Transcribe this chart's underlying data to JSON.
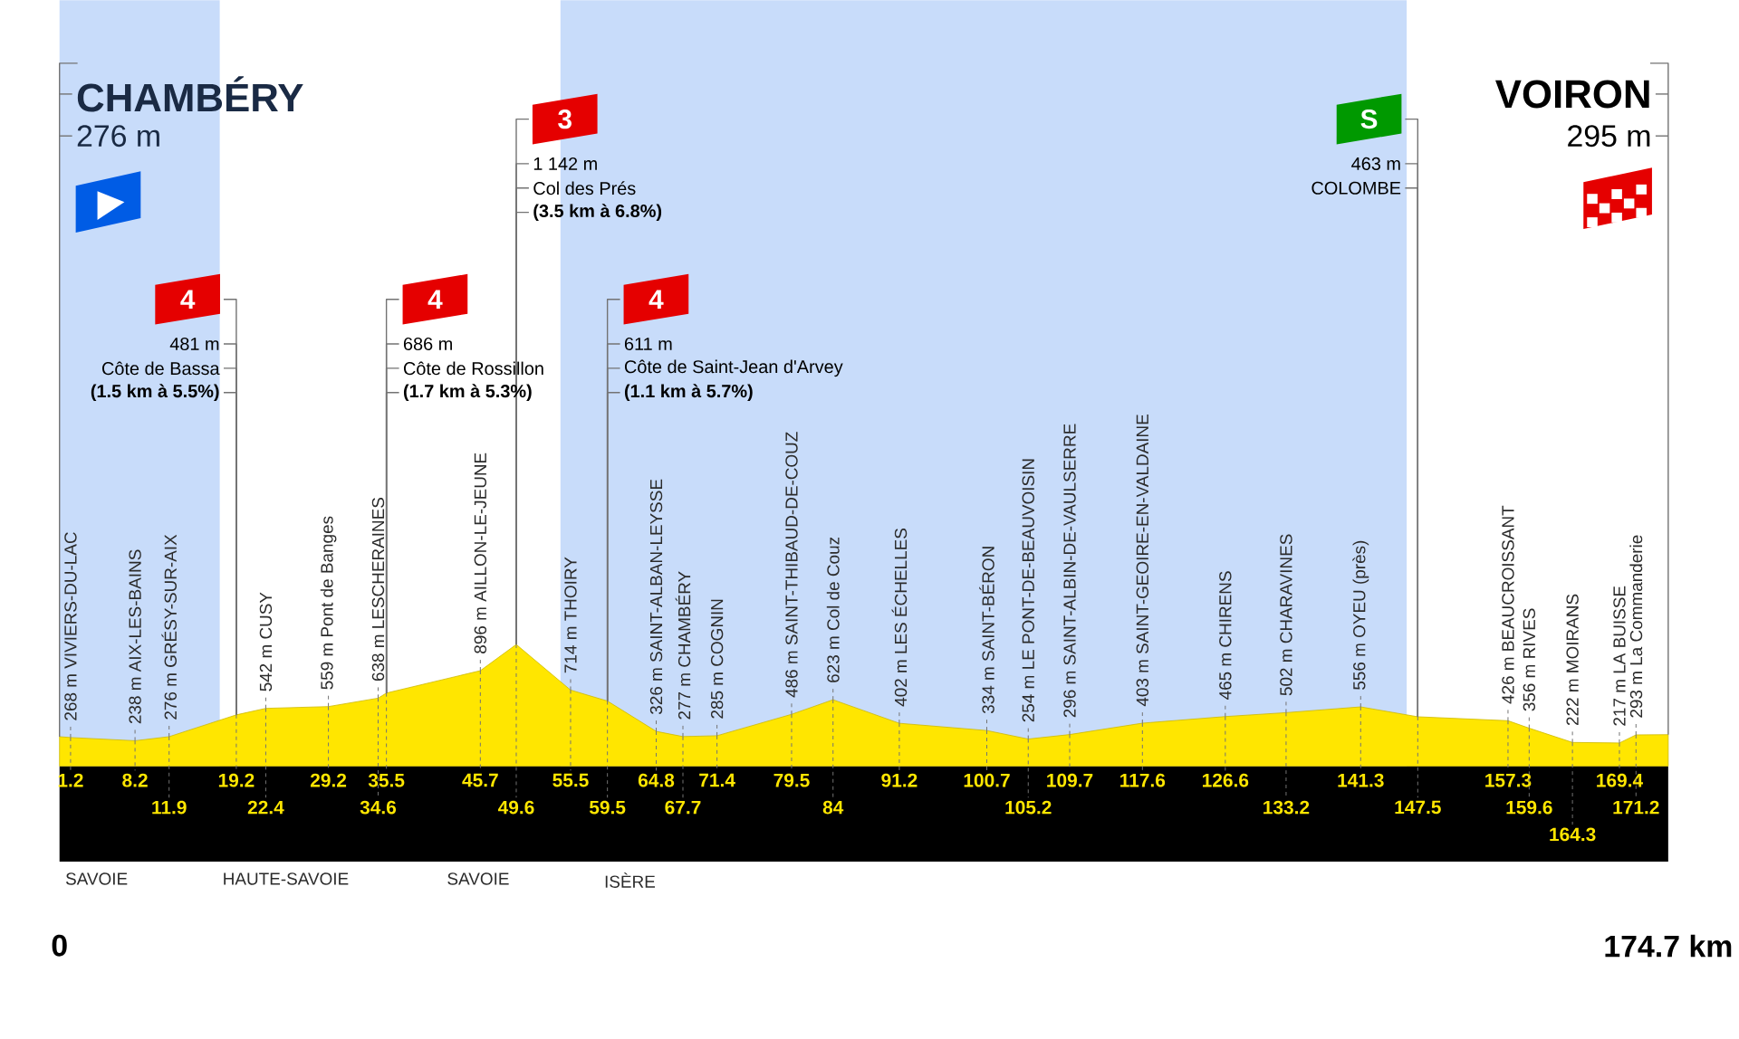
{
  "chart_data": {
    "type": "area",
    "color": "#ffe600",
    "tick_labels": "x",
    "xticks": [
      0,
      {
        "value": 174.7,
        "label": "174.7 km"
      }
    ],
    "x": [
      0,
      1.2,
      8.2,
      11.9,
      19.2,
      22.4,
      29.2,
      34.6,
      35.5,
      45.7,
      49.6,
      55.5,
      59.5,
      64.8,
      67.7,
      71.4,
      79.5,
      84,
      91.2,
      100.7,
      105.2,
      109.7,
      117.6,
      126.6,
      133.2,
      141.3,
      147.5,
      157.3,
      159.6,
      164.3,
      169.4,
      171.2,
      174.7
    ],
    "values": [
      276,
      268,
      238,
      276,
      481,
      542,
      559,
      638,
      686,
      896,
      1142,
      714,
      611,
      326,
      277,
      285,
      486,
      623,
      402,
      334,
      254,
      296,
      403,
      465,
      502,
      556,
      463,
      426,
      356,
      222,
      217,
      293,
      295
    ],
    "value_labels": [
      null,
      "268 m VIVIERS-DU-LAC",
      "238 m AIX-LES-BAINS",
      "276 m GRÉSY-SUR-AIX",
      null,
      "542 m CUSY",
      "559 m Pont de Banges",
      "638 m LESCHERAINES",
      null,
      "896 m AILLON-LE-JEUNE",
      null,
      "714 m THOIRY",
      null,
      "326 m SAINT-ALBAN-LEYSSE",
      "277 m CHAMBÉRY",
      "285 m COGNIN",
      "486 m SAINT-THIBAUD-DE-COUZ",
      "623 m Col de Couz",
      "402 m LES ÉCHELLES",
      "334 m SAINT-BÉRON",
      "254 m LE PONT-DE-BEAUVOISIN",
      "296 m SAINT-ALBIN-DE-VAULSERRE",
      "403 m SAINT-GEOIRE-EN-VALDAINE",
      "465 m CHIRENS",
      "502 m CHARAVINES",
      "556 m OYEU (près)",
      null,
      "426 m BEAUCROISSANT",
      "356 m RIVES",
      "222 m MOIRANS",
      "217 m LA BUISSE",
      "293 m La Commanderie",
      null
    ],
    "xlim": [
      0,
      174.7
    ],
    "bands": [
      {
        "axis": "x",
        "from": 0,
        "to": 17.4,
        "color": "#c8dcfa"
      },
      {
        "axis": "x",
        "from": 54.4,
        "to": 146.3,
        "color": "#c8dcfa"
      }
    ],
    "annotations": [
      {
        "text": "1.2",
        "x": 1.2,
        "y": 268
      },
      {
        "text": "8.2",
        "x": 8.2,
        "y": 238
      },
      {
        "text": "11.9",
        "x": 11.9,
        "y": 276
      },
      {
        "text": "19.2",
        "x": 19.2,
        "y": 481
      },
      {
        "text": "4",
        "x": 19.2,
        "y": 481
      },
      {
        "text": "481 m",
        "x": 19.2,
        "y": 481
      },
      {
        "text": "Côte de Bassa",
        "x": 19.2,
        "y": 481
      },
      {
        "text": "**(1.5 km à 5.5%)**",
        "x": 19.2,
        "y": 481
      },
      {
        "text": "22.4",
        "x": 22.4,
        "y": 542
      },
      {
        "text": "29.2",
        "x": 29.2,
        "y": 559
      },
      {
        "text": "34.6",
        "x": 34.6,
        "y": 638
      },
      {
        "text": "35.5",
        "x": 35.5,
        "y": 686
      },
      {
        "text": "4",
        "x": 35.5,
        "y": 686
      },
      {
        "text": "686 m",
        "x": 35.5,
        "y": 686
      },
      {
        "text": "Côte de Rossillon",
        "x": 35.5,
        "y": 686
      },
      {
        "text": "**(1.7 km à 5.3%)**",
        "x": 35.5,
        "y": 686
      },
      {
        "text": "45.7",
        "x": 45.7,
        "y": 896
      },
      {
        "text": "49.6",
        "x": 49.6,
        "y": 1142
      },
      {
        "text": "3",
        "x": 49.6,
        "y": 1142
      },
      {
        "text": "1 142 m",
        "x": 49.6,
        "y": 1142
      },
      {
        "text": "Col des Prés",
        "x": 49.6,
        "y": 1142
      },
      {
        "text": "**(3.5 km à 6.8%)**",
        "x": 49.6,
        "y": 1142
      },
      {
        "text": "55.5",
        "x": 55.5,
        "y": 714
      },
      {
        "text": "59.5",
        "x": 59.5,
        "y": 611
      },
      {
        "text": "4",
        "x": 59.5,
        "y": 611
      },
      {
        "text": "611 m",
        "x": 59.5,
        "y": 611
      },
      {
        "text": "Côte de Saint-Jean d'Arvey",
        "x": 59.5,
        "y": 611
      },
      {
        "text": "**(1.1 km à 5.7%)**",
        "x": 59.5,
        "y": 611
      },
      {
        "text": "64.8",
        "x": 64.8,
        "y": 326
      },
      {
        "text": "67.7",
        "x": 67.7,
        "y": 277
      },
      {
        "text": "71.4",
        "x": 71.4,
        "y": 285
      },
      {
        "text": "79.5",
        "x": 79.5,
        "y": 486
      },
      {
        "text": "84",
        "x": 84,
        "y": 623
      },
      {
        "text": "91.2",
        "x": 91.2,
        "y": 402
      },
      {
        "text": "100.7",
        "x": 100.7,
        "y": 334
      },
      {
        "text": "105.2",
        "x": 105.2,
        "y": 254
      },
      {
        "text": "109.7",
        "x": 109.7,
        "y": 296
      },
      {
        "text": "117.6",
        "x": 117.6,
        "y": 403
      },
      {
        "text": "126.6",
        "x": 126.6,
        "y": 465
      },
      {
        "text": "133.2",
        "x": 133.2,
        "y": 502
      },
      {
        "text": "141.3",
        "x": 141.3,
        "y": 556
      },
      {
        "text": "147.5",
        "x": 147.5,
        "y": 463
      },
      {
        "text": "S",
        "x": 147.5,
        "y": 463
      },
      {
        "text": "463 m",
        "x": 147.5,
        "y": 463
      },
      {
        "text": "COLOMBE",
        "x": 147.5,
        "y": 463
      },
      {
        "text": "157.3",
        "x": 157.3,
        "y": 426
      },
      {
        "text": "159.6",
        "x": 159.6,
        "y": 356
      },
      {
        "text": "164.3",
        "x": 164.3,
        "y": 222
      },
      {
        "text": "169.4",
        "x": 169.4,
        "y": 217
      },
      {
        "text": "171.2",
        "x": 171.2,
        "y": 293
      },
      "CHAMBÉRY",
      "276 m",
      "SAVOIE",
      "HAUTE-SAVOIE",
      "SAVOIE",
      "ISÈRE",
      "VOIRON",
      "295 m"
    ]
  }
}
